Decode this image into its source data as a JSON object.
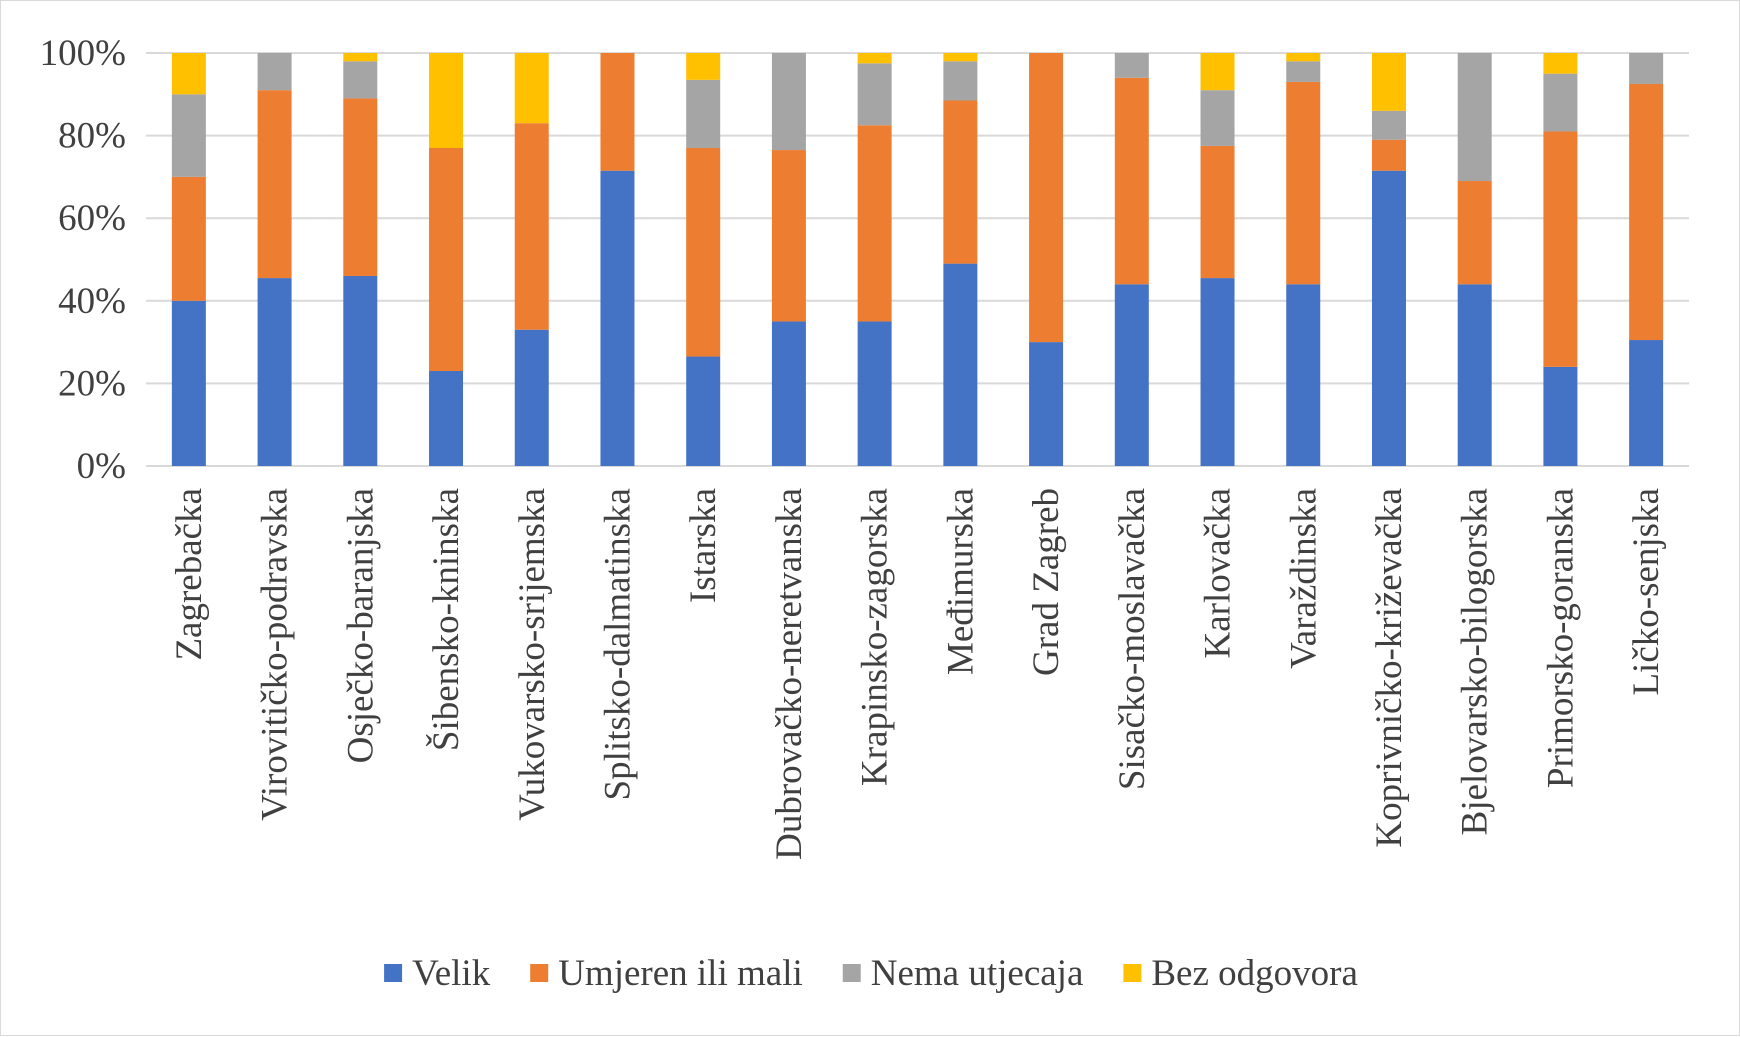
{
  "chart_data": {
    "type": "bar",
    "stacked": true,
    "percent_stacked": true,
    "ylim": [
      0,
      100
    ],
    "yticks": [
      "0%",
      "20%",
      "40%",
      "60%",
      "80%",
      "100%"
    ],
    "grid": true,
    "legend_position": "bottom",
    "categories": [
      "Zagrebačka",
      "Virovitičko-podravska",
      "Osječko-baranjska",
      "Šibensko-kninska",
      "Vukovarsko-srijemska",
      "Splitsko-dalmatinska",
      "Istarska",
      "Dubrovačko-neretvanska",
      "Krapinsko-zagorska",
      "Međimurska",
      "Grad Zagreb",
      "Sisačko-moslavačka",
      "Karlovačka",
      "Varaždinska",
      "Koprivničko-križevačka",
      "Bjelovarsko-bilogorska",
      "Primorsko-goranska",
      "Ličko-senjska"
    ],
    "series": [
      {
        "name": "Velik",
        "color": "#4472C4",
        "values": [
          40,
          45.5,
          46,
          23,
          33,
          71.5,
          26.5,
          35,
          35,
          49,
          30,
          44,
          45.5,
          44,
          71.5,
          44,
          24,
          30.5
        ]
      },
      {
        "name": "Umjeren ili mali",
        "color": "#ED7D31",
        "values": [
          30,
          45.5,
          43,
          54,
          50,
          28.5,
          50.5,
          41.5,
          47.5,
          39.5,
          70,
          50,
          32,
          49,
          7.5,
          25,
          57,
          62
        ]
      },
      {
        "name": "Nema utjecaja",
        "color": "#A5A5A5",
        "values": [
          20,
          9,
          9,
          0,
          0,
          0,
          16.5,
          23.5,
          15,
          9.5,
          0,
          6,
          13.5,
          5,
          7,
          31,
          14,
          7.5
        ]
      },
      {
        "name": "Bez odgovora",
        "color": "#FFC000",
        "values": [
          10,
          0,
          2,
          23,
          17,
          0,
          6.5,
          0,
          2.5,
          2,
          0,
          0,
          9,
          2,
          14,
          0,
          5,
          0
        ]
      }
    ]
  }
}
